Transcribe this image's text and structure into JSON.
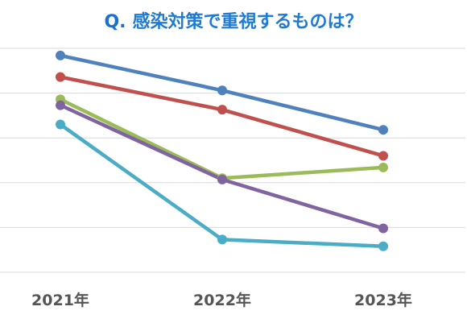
{
  "title": {
    "prefix": "Q.",
    "text": "感染対策で重視するものは？"
  },
  "colors": {
    "grid": "#d9d9d9",
    "title": "#1f7ad1",
    "tick_label": "#555555"
  },
  "chart_data": {
    "type": "line",
    "categories": [
      "2021年",
      "2022年",
      "2023年"
    ],
    "ylim": [
      0,
      5
    ],
    "grid": true,
    "legend": "none",
    "series": [
      {
        "color": "#4f81bd",
        "values": [
          4.84,
          4.06,
          3.18
        ]
      },
      {
        "color": "#c0504d",
        "values": [
          4.36,
          3.63,
          2.6
        ]
      },
      {
        "color": "#9bbb59",
        "values": [
          3.86,
          2.1,
          2.34
        ]
      },
      {
        "color": "#8064a2",
        "values": [
          3.73,
          2.07,
          0.98
        ]
      },
      {
        "color": "#4bacc6",
        "values": [
          3.3,
          0.73,
          0.58
        ]
      }
    ]
  }
}
